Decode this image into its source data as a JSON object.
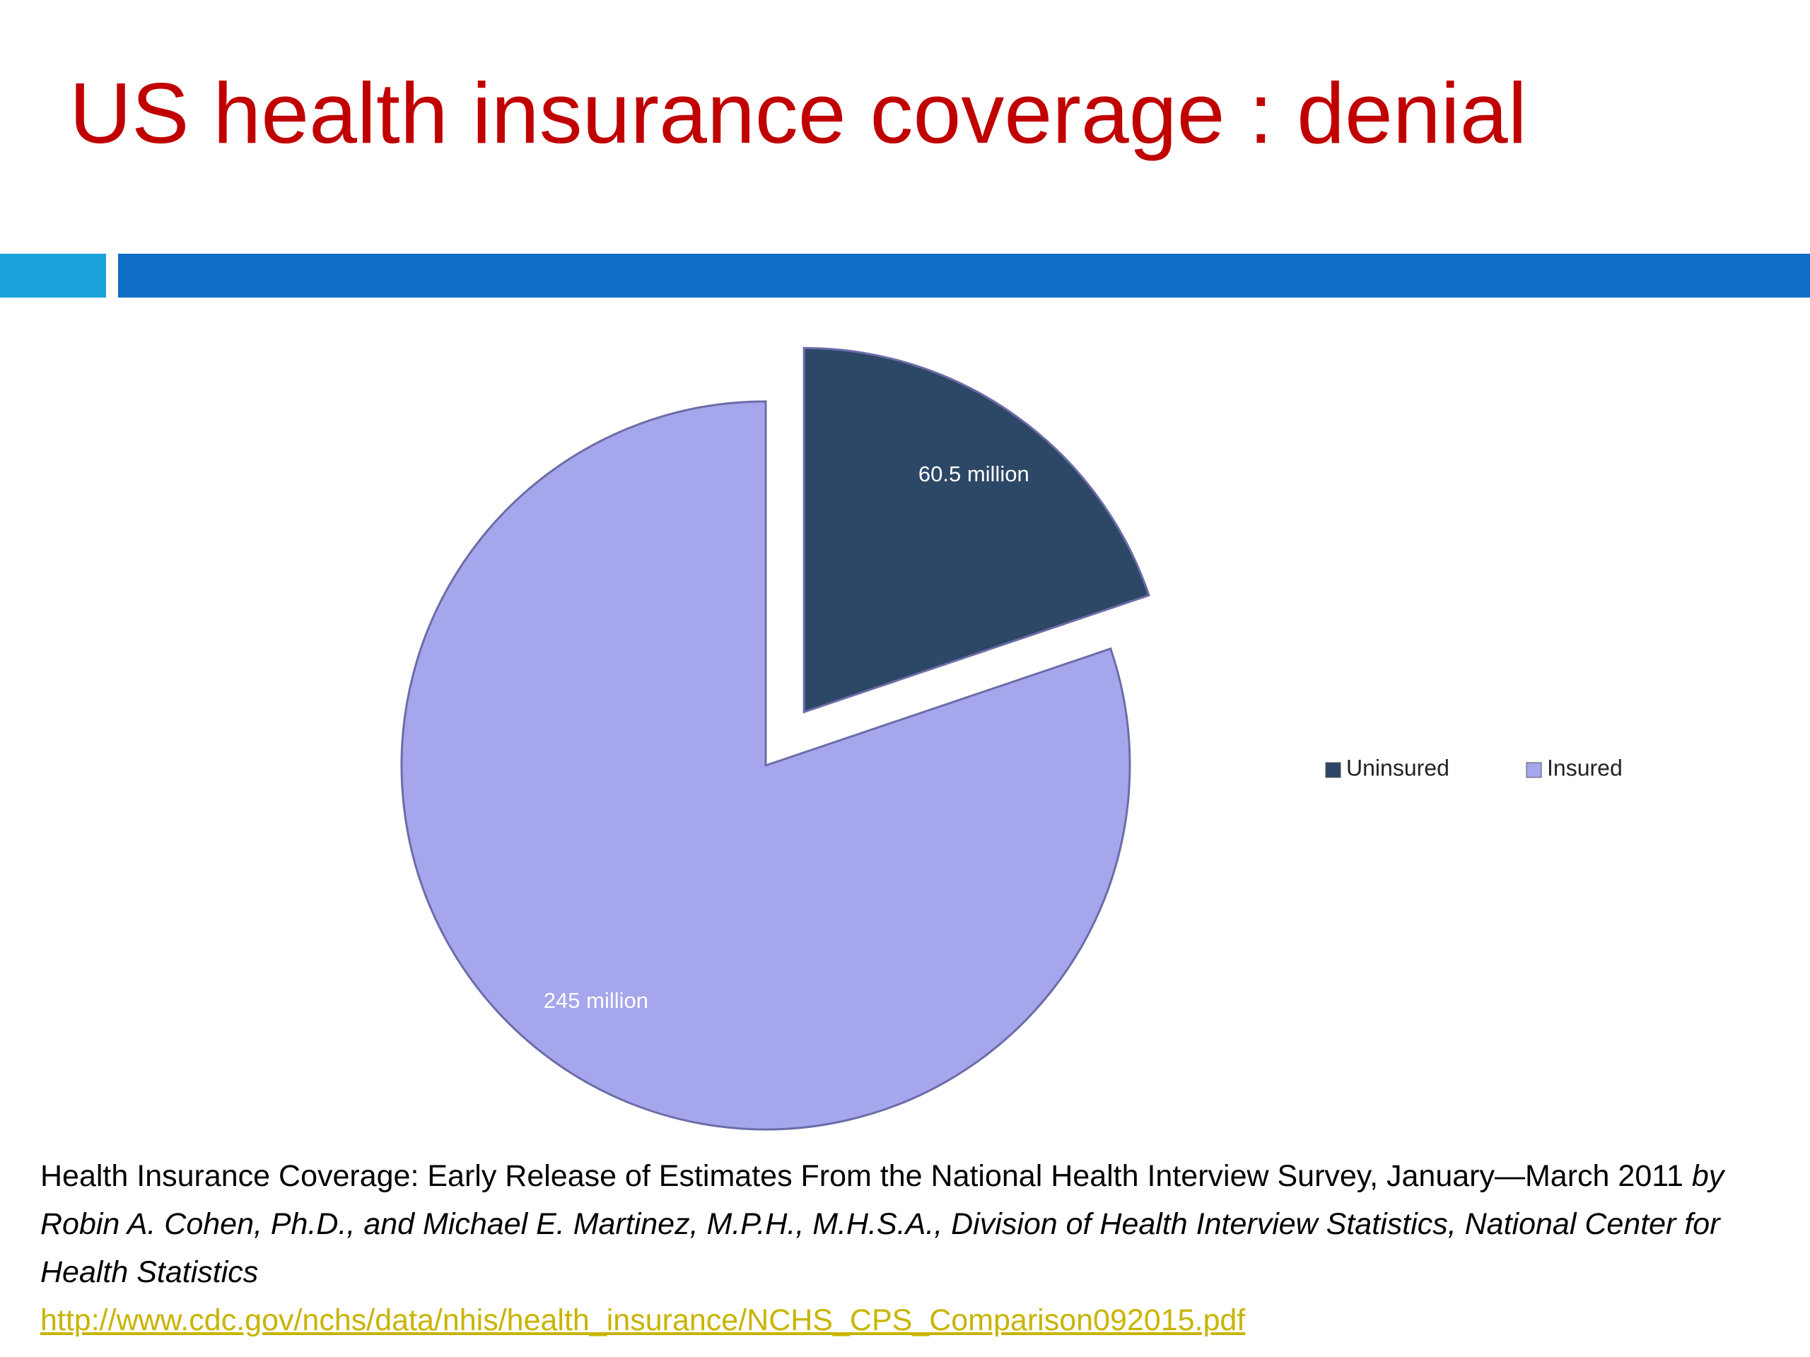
{
  "chart_data": {
    "type": "pie",
    "title": "US health insurance coverage : denial",
    "categories": [
      "Uninsured",
      "Insured"
    ],
    "values": [
      60.5,
      245
    ],
    "value_labels": [
      "60.5 million",
      "245 million"
    ],
    "colors": [
      "#2d4766",
      "#a6a6ec"
    ],
    "legend": "right"
  },
  "caption": {
    "text": "Health Insurance Coverage: Early Release of Estimates From the National Health Interview Survey, January—March 2011",
    "authors": "by Robin A. Cohen, Ph.D., and Michael E. Martinez, M.P.H., M.H.S.A., Division of Health Interview Statistics, National Center for Health Statistics",
    "url": "http://www.cdc.gov/nchs/data/nhis/health_insurance/NCHS_CPS_Comparison092015.pdf"
  }
}
